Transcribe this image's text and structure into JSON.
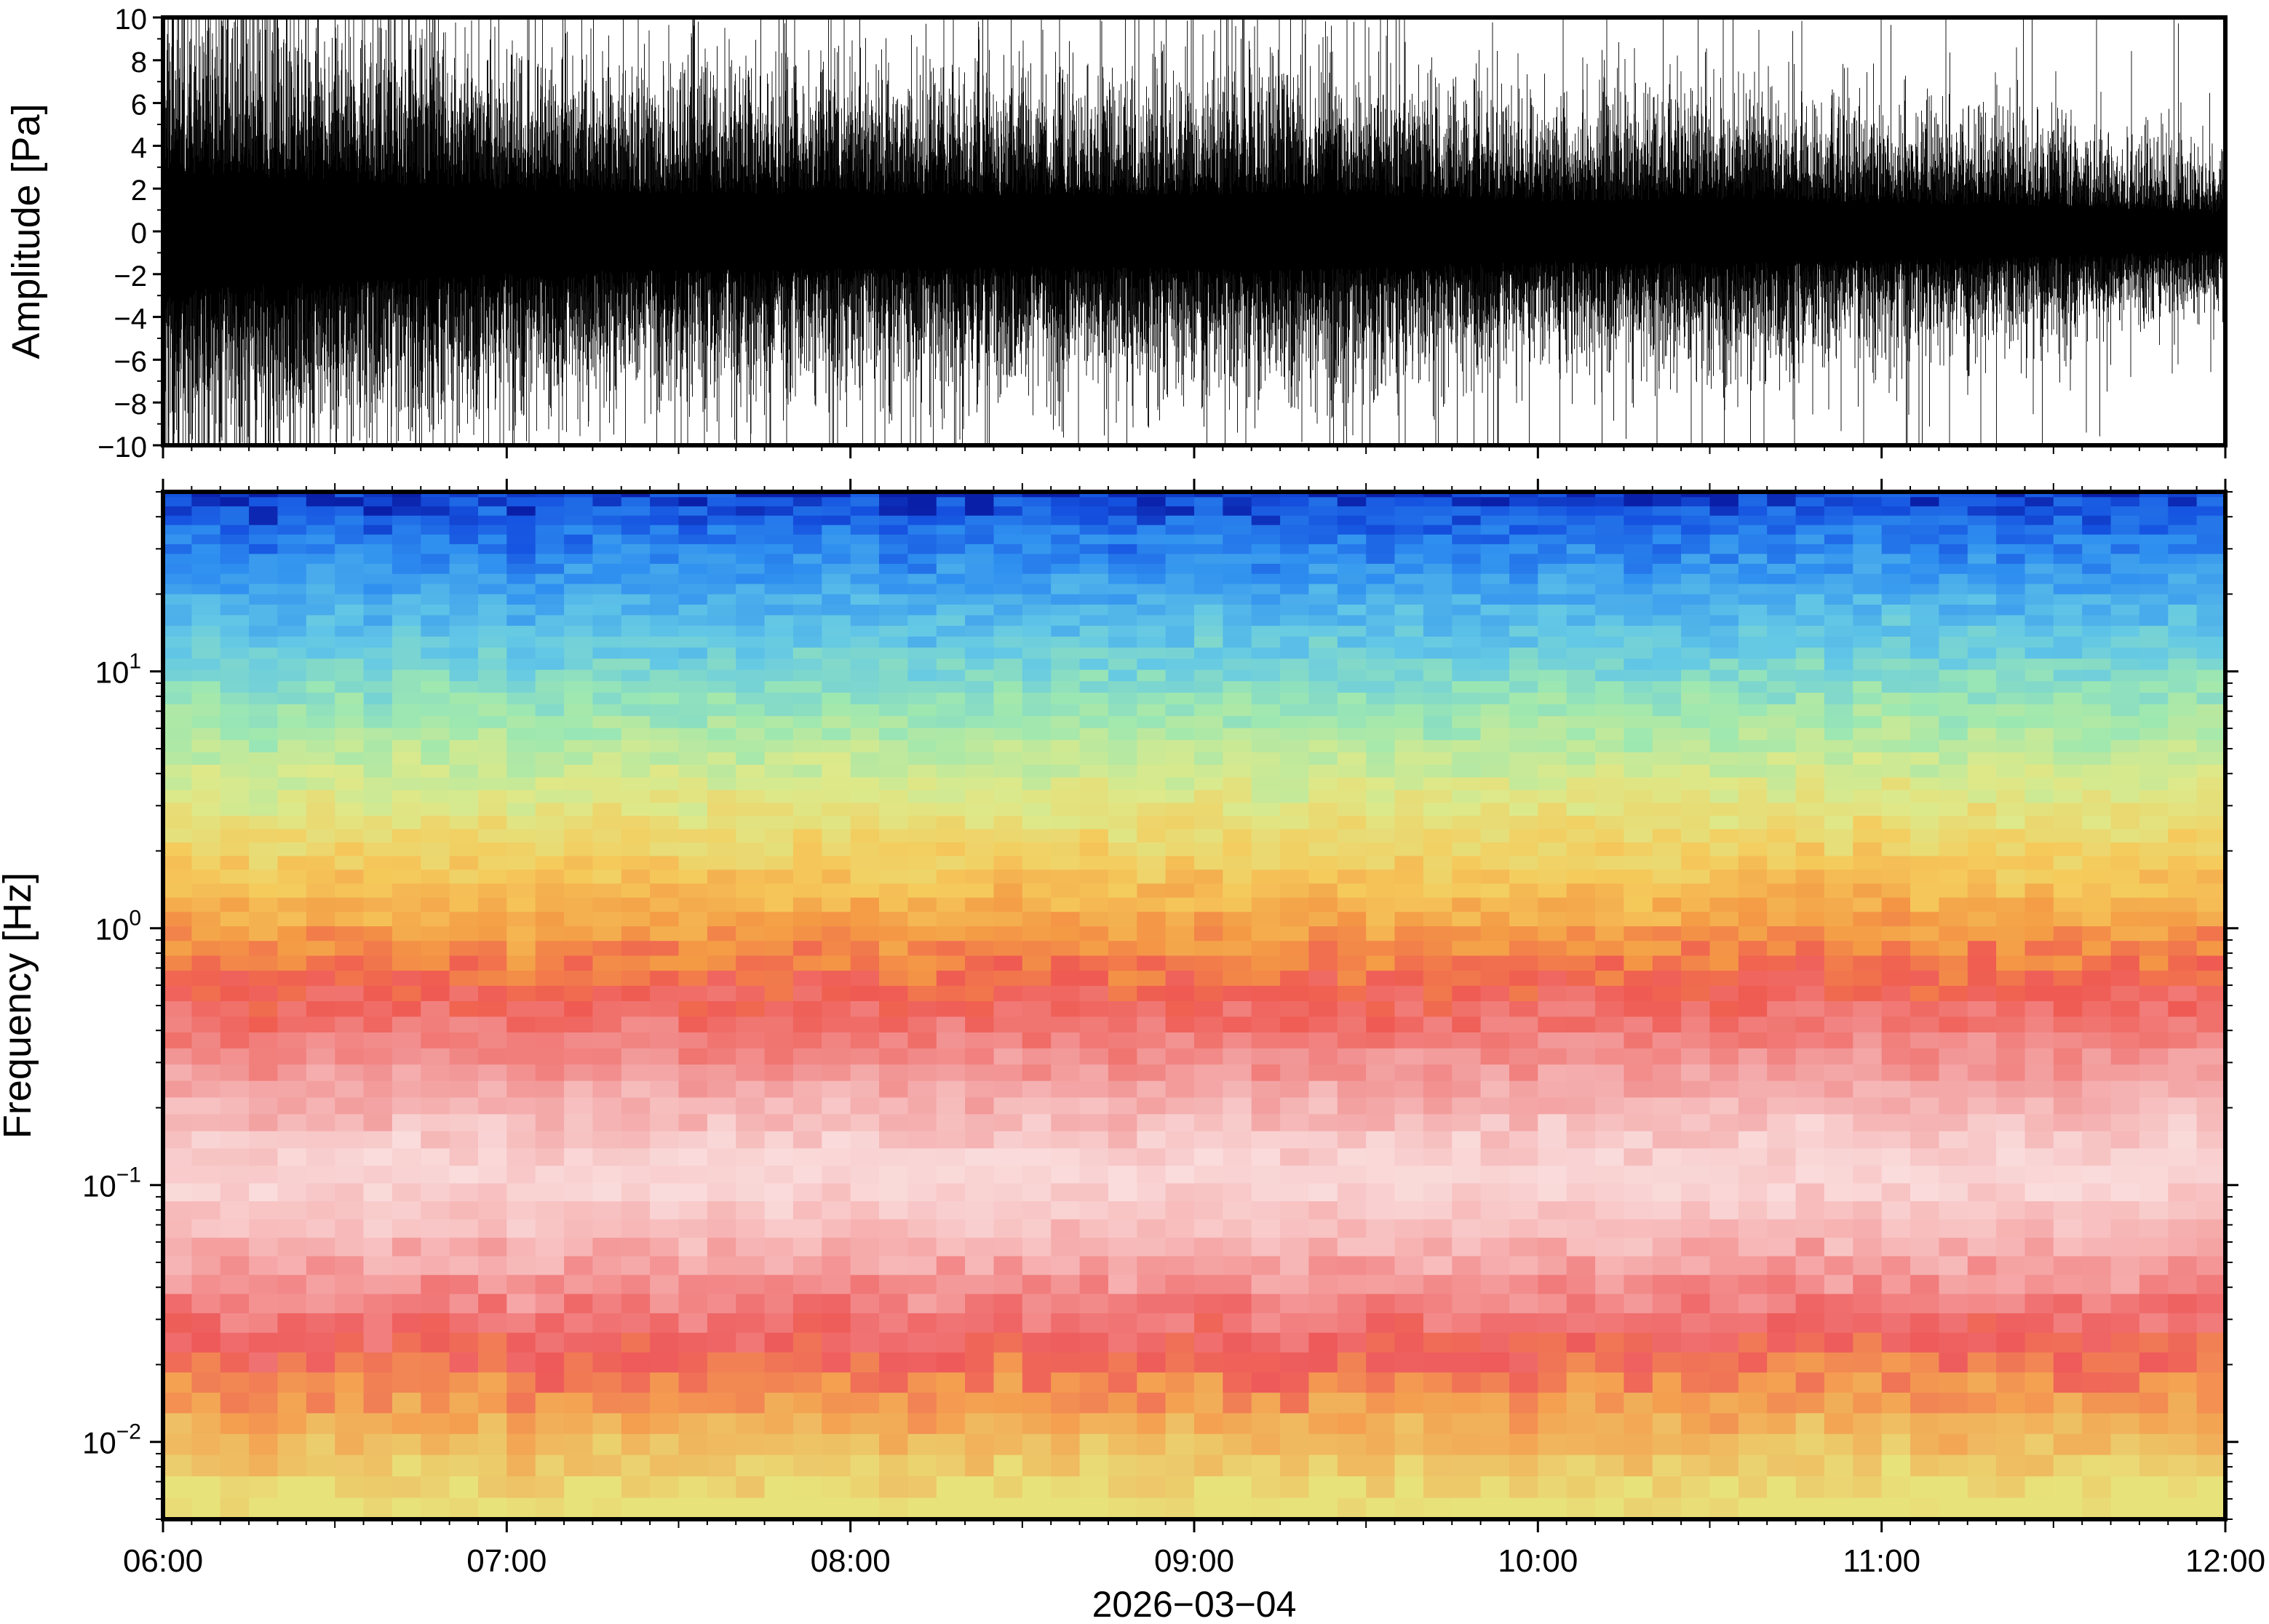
{
  "chart_data": [
    {
      "type": "line",
      "ylabel": "Amplitude [Pa]",
      "ylim": [
        -10,
        10
      ],
      "yticks": [
        "10",
        "8",
        "6",
        "4",
        "2",
        "0",
        "−2",
        "−4",
        "−6",
        "−8",
        "−10"
      ],
      "xlim": [
        "06:00",
        "12:00"
      ],
      "series": [
        {
          "color": "#000000",
          "envelope_hours": [
            6.0,
            6.25,
            6.5,
            6.75,
            7.0,
            7.25,
            7.5,
            7.75,
            8.0,
            8.25,
            8.5,
            8.75,
            9.0,
            9.25,
            9.5,
            9.75,
            10.0,
            10.25,
            10.5,
            10.75,
            11.0,
            11.25,
            11.5,
            11.75,
            12.0
          ],
          "envelope_pa": [
            5.5,
            5.0,
            4.6,
            4.3,
            3.9,
            3.6,
            3.5,
            3.5,
            3.4,
            3.4,
            3.3,
            3.3,
            3.4,
            3.6,
            3.4,
            3.0,
            2.8,
            2.9,
            3.0,
            2.8,
            2.6,
            2.5,
            2.3,
            2.0,
            1.6
          ]
        }
      ]
    },
    {
      "type": "heatmap",
      "ylabel": "Frequency [Hz]",
      "yscale": "log",
      "ylim": [
        0.005,
        50
      ],
      "yticks": [
        {
          "base": "10",
          "exp": "1",
          "value": 10
        },
        {
          "base": "10",
          "exp": "0",
          "value": 1
        },
        {
          "base": "10",
          "exp": "−1",
          "value": 0.1
        },
        {
          "base": "10",
          "exp": "−2",
          "value": 0.01
        }
      ],
      "xlabel": "2026−03−04",
      "xticks": [
        "06:00",
        "07:00",
        "08:00",
        "09:00",
        "10:00",
        "11:00",
        "12:00"
      ],
      "xlim": [
        "06:00",
        "12:00"
      ],
      "colormap": "rainbow (blue = high frequency power low, red = peak, green at lowest band)",
      "bands": [
        {
          "freq_hz": 50,
          "color": "#0a1fa8"
        },
        {
          "freq_hz": 40,
          "color": "#1552e0"
        },
        {
          "freq_hz": 25,
          "color": "#2f8ff0"
        },
        {
          "freq_hz": 12,
          "color": "#63c8e6"
        },
        {
          "freq_hz": 6,
          "color": "#9ee8b0"
        },
        {
          "freq_hz": 3,
          "color": "#dde98a"
        },
        {
          "freq_hz": 1.5,
          "color": "#f5cb5c"
        },
        {
          "freq_hz": 0.8,
          "color": "#f49a45"
        },
        {
          "freq_hz": 0.5,
          "color": "#ef5a52"
        },
        {
          "freq_hz": 0.25,
          "color": "#f29696"
        },
        {
          "freq_hz": 0.1,
          "color": "#fadcdc"
        },
        {
          "freq_hz": 0.05,
          "color": "#f7b4b4"
        },
        {
          "freq_hz": 0.02,
          "color": "#ee5a5a"
        },
        {
          "freq_hz": 0.012,
          "color": "#f4a050"
        },
        {
          "freq_hz": 0.005,
          "color": "#e8e27a"
        }
      ]
    }
  ]
}
